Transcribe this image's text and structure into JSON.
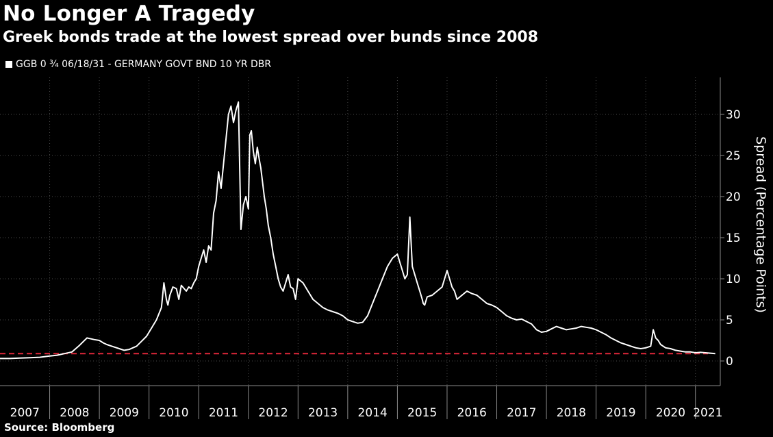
{
  "title": "No Longer A Tragedy",
  "subtitle": "Greek bonds trade at the lowest spread over bunds since 2008",
  "legend_label": "GGB 0 ¾ 06/18/31 - GERMANY GOVT BND 10 YR DBR",
  "source": "Source: Bloomberg",
  "colors": {
    "background": "#000000",
    "series": "#ffffff",
    "reference_line": "#e0273a",
    "grid": "#4a4a4a"
  },
  "chart_data": {
    "type": "line",
    "title": "No Longer A Tragedy",
    "subtitle": "Greek bonds trade at the lowest spread over bunds since 2008",
    "xlabel": "",
    "ylabel": "Spread (Percentage Points)",
    "xlim": [
      2007.0,
      2021.5
    ],
    "ylim": [
      -3,
      34.5
    ],
    "x_tick_labels": [
      "2007",
      "2008",
      "2009",
      "2010",
      "2011",
      "2012",
      "2013",
      "2014",
      "2015",
      "2016",
      "2017",
      "2018",
      "2019",
      "2020",
      "2021"
    ],
    "y_ticks": [
      0,
      5,
      10,
      15,
      20,
      25,
      30
    ],
    "grid": true,
    "legend_position": "top-left",
    "reference_line": {
      "y": 0.9,
      "style": "dashed"
    },
    "series": [
      {
        "name": "GGB 0 ¾ 06/18/31 - GERMANY GOVT BND 10 YR DBR",
        "x": [
          2007.0,
          2007.2,
          2007.4,
          2007.6,
          2007.8,
          2008.0,
          2008.15,
          2008.3,
          2008.45,
          2008.6,
          2008.75,
          2008.9,
          2009.0,
          2009.08,
          2009.15,
          2009.25,
          2009.4,
          2009.5,
          2009.6,
          2009.75,
          2009.85,
          2009.95,
          2010.05,
          2010.15,
          2010.25,
          2010.3,
          2010.35,
          2010.38,
          2010.42,
          2010.48,
          2010.55,
          2010.6,
          2010.65,
          2010.75,
          2010.8,
          2010.85,
          2010.9,
          2010.95,
          2011.0,
          2011.05,
          2011.1,
          2011.15,
          2011.2,
          2011.25,
          2011.3,
          2011.35,
          2011.4,
          2011.45,
          2011.5,
          2011.55,
          2011.6,
          2011.65,
          2011.7,
          2011.75,
          2011.8,
          2011.85,
          2011.9,
          2011.95,
          2012.0,
          2012.03,
          2012.06,
          2012.1,
          2012.14,
          2012.18,
          2012.22,
          2012.25,
          2012.28,
          2012.32,
          2012.36,
          2012.4,
          2012.45,
          2012.5,
          2012.55,
          2012.6,
          2012.65,
          2012.7,
          2012.75,
          2012.8,
          2012.85,
          2012.9,
          2012.95,
          2013.0,
          2013.1,
          2013.2,
          2013.3,
          2013.4,
          2013.5,
          2013.6,
          2013.7,
          2013.8,
          2013.9,
          2014.0,
          2014.1,
          2014.2,
          2014.3,
          2014.4,
          2014.5,
          2014.6,
          2014.7,
          2014.8,
          2014.9,
          2015.0,
          2015.05,
          2015.1,
          2015.15,
          2015.2,
          2015.25,
          2015.3,
          2015.35,
          2015.4,
          2015.45,
          2015.5,
          2015.52,
          2015.55,
          2015.6,
          2015.7,
          2015.8,
          2015.9,
          2016.0,
          2016.05,
          2016.1,
          2016.15,
          2016.2,
          2016.3,
          2016.4,
          2016.5,
          2016.6,
          2016.7,
          2016.8,
          2016.9,
          2017.0,
          2017.1,
          2017.2,
          2017.3,
          2017.4,
          2017.5,
          2017.6,
          2017.7,
          2017.8,
          2017.9,
          2018.0,
          2018.1,
          2018.2,
          2018.3,
          2018.4,
          2018.5,
          2018.6,
          2018.7,
          2018.8,
          2018.9,
          2019.0,
          2019.1,
          2019.2,
          2019.3,
          2019.4,
          2019.5,
          2019.6,
          2019.7,
          2019.8,
          2019.9,
          2020.0,
          2020.1,
          2020.15,
          2020.2,
          2020.25,
          2020.3,
          2020.4,
          2020.5,
          2020.6,
          2020.7,
          2020.8,
          2020.9,
          2021.0,
          2021.1,
          2021.2,
          2021.3,
          2021.4
        ],
        "y": [
          0.3,
          0.3,
          0.35,
          0.4,
          0.45,
          0.6,
          0.7,
          0.9,
          1.1,
          1.9,
          2.8,
          2.6,
          2.5,
          2.2,
          2.0,
          1.8,
          1.5,
          1.3,
          1.4,
          1.8,
          2.4,
          3.0,
          4.0,
          5.0,
          6.5,
          9.5,
          7.5,
          6.8,
          8.0,
          9.0,
          8.8,
          7.5,
          9.2,
          8.5,
          9.0,
          8.8,
          9.5,
          10.0,
          11.5,
          12.5,
          13.5,
          12.0,
          14.0,
          13.5,
          18.0,
          19.5,
          23.0,
          21.0,
          24.0,
          27.0,
          30.0,
          31.0,
          29.0,
          30.5,
          31.5,
          16.0,
          19.0,
          20.0,
          18.5,
          27.5,
          28.0,
          25.5,
          24.0,
          26.0,
          24.5,
          23.5,
          22.0,
          20.0,
          18.5,
          16.5,
          15.0,
          13.0,
          11.5,
          10.0,
          9.0,
          8.5,
          9.5,
          10.5,
          9.0,
          8.8,
          7.5,
          10.0,
          9.5,
          8.5,
          7.5,
          7.0,
          6.5,
          6.2,
          6.0,
          5.8,
          5.5,
          5.0,
          4.8,
          4.6,
          4.7,
          5.5,
          7.0,
          8.5,
          10.0,
          11.5,
          12.5,
          13.0,
          12.0,
          11.0,
          10.0,
          10.5,
          17.5,
          11.5,
          10.5,
          9.5,
          8.5,
          7.5,
          7.0,
          6.8,
          7.8,
          8.0,
          8.5,
          9.0,
          11.0,
          10.0,
          9.0,
          8.5,
          7.5,
          8.0,
          8.5,
          8.2,
          8.0,
          7.5,
          7.0,
          6.8,
          6.5,
          6.0,
          5.5,
          5.2,
          5.0,
          5.1,
          4.8,
          4.5,
          3.8,
          3.5,
          3.6,
          3.9,
          4.2,
          4.0,
          3.8,
          3.9,
          4.0,
          4.2,
          4.1,
          4.0,
          3.8,
          3.5,
          3.2,
          2.8,
          2.5,
          2.2,
          2.0,
          1.8,
          1.6,
          1.5,
          1.6,
          1.8,
          3.8,
          2.8,
          2.5,
          2.0,
          1.6,
          1.5,
          1.3,
          1.2,
          1.1,
          1.1,
          1.0,
          1.05,
          1.0,
          0.95,
          0.9
        ]
      }
    ]
  }
}
